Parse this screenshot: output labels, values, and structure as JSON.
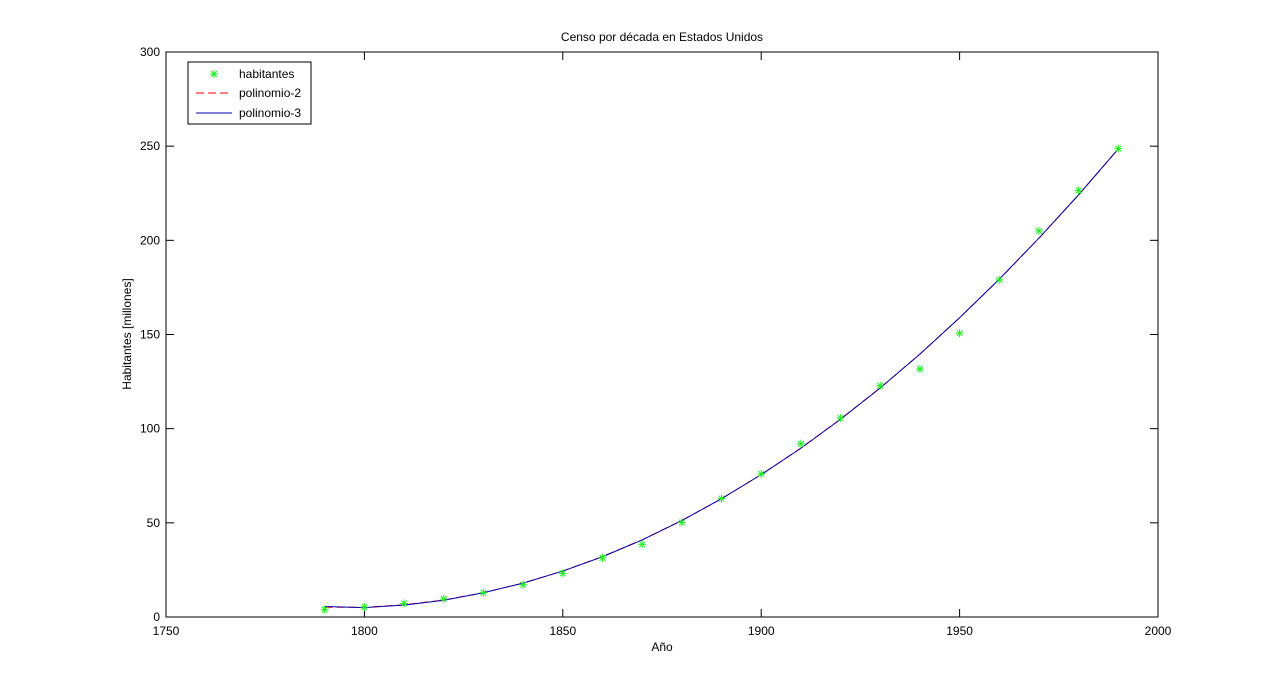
{
  "chart_data": {
    "type": "line",
    "title": "Censo por década en Estados Unidos",
    "xlabel": "Año",
    "ylabel": "Habitantes [millones]",
    "xlim": [
      1750,
      2000
    ],
    "ylim": [
      0,
      300
    ],
    "xticks": [
      1750,
      1800,
      1850,
      1900,
      1950,
      2000
    ],
    "yticks": [
      0,
      50,
      100,
      150,
      200,
      250,
      300
    ],
    "grid": false,
    "legend_position": "top-left",
    "series": [
      {
        "name": "habitantes",
        "kind": "markers",
        "marker": "asterisk",
        "color": "#22ee22",
        "x": [
          1790,
          1800,
          1810,
          1820,
          1830,
          1840,
          1850,
          1860,
          1870,
          1880,
          1890,
          1900,
          1910,
          1920,
          1930,
          1940,
          1950,
          1960,
          1970,
          1980,
          1990
        ],
        "y": [
          3.9,
          5.3,
          7.2,
          9.6,
          12.9,
          17.1,
          23.2,
          31.4,
          38.6,
          50.2,
          62.9,
          76.0,
          92.0,
          105.7,
          122.8,
          131.7,
          150.7,
          179.0,
          205.0,
          226.5,
          248.7
        ]
      },
      {
        "name": "polinomio-2",
        "kind": "line",
        "dash": "dashed",
        "color": "#ff0000",
        "x": [
          1790,
          1800,
          1810,
          1820,
          1830,
          1840,
          1850,
          1860,
          1870,
          1880,
          1890,
          1900,
          1910,
          1920,
          1930,
          1940,
          1950,
          1960,
          1970,
          1980,
          1990
        ],
        "y": [
          5.2,
          5.2,
          6.5,
          9.0,
          12.9,
          18.0,
          24.4,
          32.1,
          41.0,
          51.3,
          62.8,
          75.6,
          89.7,
          105.1,
          121.7,
          139.6,
          158.9,
          179.3,
          201.1,
          224.1,
          248.5
        ]
      },
      {
        "name": "polinomio-3",
        "kind": "line",
        "dash": "solid",
        "color": "#0000aa",
        "x": [
          1790,
          1800,
          1810,
          1820,
          1830,
          1840,
          1850,
          1860,
          1870,
          1880,
          1890,
          1900,
          1910,
          1920,
          1930,
          1940,
          1950,
          1960,
          1970,
          1980,
          1990
        ],
        "y": [
          5.6,
          5.0,
          6.3,
          8.9,
          12.9,
          18.0,
          24.4,
          32.0,
          40.9,
          51.2,
          62.8,
          75.6,
          89.6,
          105.0,
          121.6,
          139.6,
          158.9,
          179.4,
          201.2,
          224.2,
          248.6
        ]
      }
    ]
  }
}
